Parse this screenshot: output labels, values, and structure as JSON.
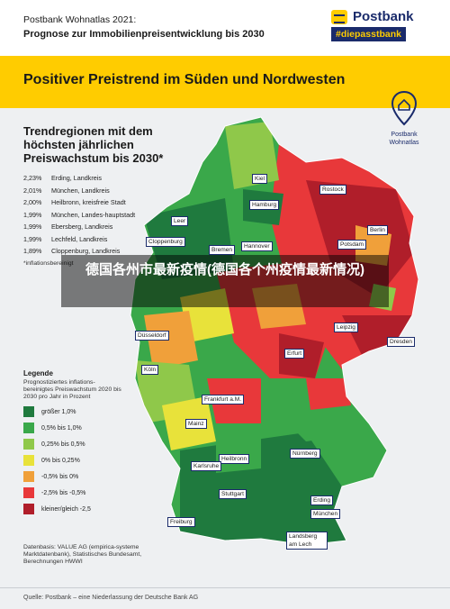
{
  "header": {
    "line1": "Postbank Wohnatlas 2021:",
    "line2": "Prognose zur Immobilienpreisentwicklung bis 2030",
    "logo_name": "Postbank",
    "logo_tag": "#diepasstbank"
  },
  "headline": "Positiver Preistrend im Süden und Nordwesten",
  "pin": {
    "line1": "Postbank",
    "line2": "Wohnatlas",
    "icon": "home-pin-icon"
  },
  "trend": {
    "title": "Trendregionen mit dem höchsten jährlichen Preiswachstum bis 2030*",
    "rows": [
      {
        "value": "2,23%",
        "name": "Erding, Landkreis"
      },
      {
        "value": "2,01%",
        "name": "München, Landkreis"
      },
      {
        "value": "2,00%",
        "name": "Heilbronn, kreisfreie Stadt"
      },
      {
        "value": "1,99%",
        "name": "München, Landes-hauptstadt"
      },
      {
        "value": "1,99%",
        "name": "Ebersberg, Landkreis"
      },
      {
        "value": "1,99%",
        "name": "Lechfeld, Landkreis"
      },
      {
        "value": "1,89%",
        "name": "Cloppenburg, Landkreis"
      }
    ],
    "footnote": "*inflationsbereinigt"
  },
  "legend": {
    "title": "Legende",
    "description": "Prognostiziertes inflations-bereinigtes Preiswachstum 2020 bis 2030 pro Jahr in Prozent",
    "items": [
      {
        "label": "größer 1,0%",
        "color": "#1f7a3e"
      },
      {
        "label": "0,5% bis 1,0%",
        "color": "#3aa84a"
      },
      {
        "label": "0,25% bis 0,5%",
        "color": "#8fc84a"
      },
      {
        "label": "0% bis 0,25%",
        "color": "#e8e23a"
      },
      {
        "label": "-0,5% bis 0%",
        "color": "#f0a03a"
      },
      {
        "label": "-2,5% bis -0,5%",
        "color": "#e8383a"
      },
      {
        "label": "kleiner/gleich -2,5",
        "color": "#b01e2a"
      }
    ]
  },
  "datasource": "Datenbasis: VALUE AG (empirica-systeme Marktdatenbank), Statistisches Bundesamt, Berechnungen HWWI",
  "source": "Quelle: Postbank – eine Niederlassung der Deutsche Bank AG",
  "cities": {
    "kiel": "Kiel",
    "rostock": "Rostock",
    "hamburg": "Hamburg",
    "leer": "Leer",
    "cloppenburg": "Cloppenburg",
    "bremen": "Bremen",
    "berlin": "Berlin",
    "hannover": "Hannover",
    "potsdam": "Potsdam",
    "duesseldorf": "Düsseldorf",
    "leipzig": "Leipzig",
    "dresden": "Dresden",
    "erfurt": "Erfurt",
    "koeln": "Köln",
    "frankfurt": "Frankfurt a.M.",
    "mainz": "Mainz",
    "nuernberg": "Nürnberg",
    "heilbronn": "Heilbronn",
    "karlsruhe": "Karlsruhe",
    "stuttgart": "Stuttgart",
    "erding": "Erding",
    "muenchen": "München",
    "landsberg": "Landsberg am Lech",
    "freiburg": "Freiburg"
  },
  "overlay": "德国各州市最新疫情(德国各个州疫情最新情况)"
}
